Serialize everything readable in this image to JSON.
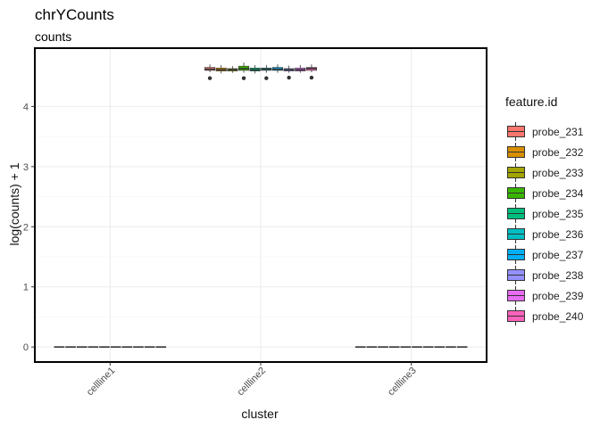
{
  "chart_data": {
    "type": "boxplot",
    "title": "chrYCounts",
    "subtitle": "counts",
    "xlabel": "cluster",
    "ylabel": "log(counts) + 1",
    "ylim": [
      -0.25,
      4.97
    ],
    "yticks": [
      0,
      1,
      2,
      3,
      4
    ],
    "categories": [
      "cellline1",
      "cellline2",
      "cellline3"
    ],
    "legend_title": "feature.id",
    "legend_position": "right",
    "grid": true,
    "series": [
      {
        "name": "probe_231",
        "color": "#F8766D",
        "stats": [
          [
            0,
            0,
            0,
            0,
            0
          ],
          [
            4.57,
            4.6,
            4.62,
            4.65,
            4.7
          ],
          [
            0,
            0,
            0,
            0,
            0
          ]
        ],
        "outliers": [
          [],
          [
            4.47
          ],
          []
        ]
      },
      {
        "name": "probe_232",
        "color": "#D89000",
        "stats": [
          [
            0,
            0,
            0,
            0,
            0
          ],
          [
            4.55,
            4.59,
            4.61,
            4.64,
            4.69
          ],
          [
            0,
            0,
            0,
            0,
            0
          ]
        ],
        "outliers": [
          [],
          [],
          []
        ]
      },
      {
        "name": "probe_233",
        "color": "#A3A500",
        "stats": [
          [
            0,
            0,
            0,
            0,
            0
          ],
          [
            4.56,
            4.59,
            4.61,
            4.63,
            4.67
          ],
          [
            0,
            0,
            0,
            0,
            0
          ]
        ],
        "outliers": [
          [],
          [],
          []
        ]
      },
      {
        "name": "probe_234",
        "color": "#39B600",
        "stats": [
          [
            0,
            0,
            0,
            0,
            0
          ],
          [
            4.56,
            4.6,
            4.63,
            4.67,
            4.73
          ],
          [
            0,
            0,
            0,
            0,
            0
          ]
        ],
        "outliers": [
          [],
          [
            4.47
          ],
          []
        ]
      },
      {
        "name": "probe_235",
        "color": "#00BF7D",
        "stats": [
          [
            0,
            0,
            0,
            0,
            0
          ],
          [
            4.55,
            4.59,
            4.61,
            4.64,
            4.69
          ],
          [
            0,
            0,
            0,
            0,
            0
          ]
        ],
        "outliers": [
          [],
          [],
          []
        ]
      },
      {
        "name": "probe_236",
        "color": "#00BFC4",
        "stats": [
          [
            0,
            0,
            0,
            0,
            0
          ],
          [
            4.56,
            4.6,
            4.62,
            4.64,
            4.69
          ],
          [
            0,
            0,
            0,
            0,
            0
          ]
        ],
        "outliers": [
          [],
          [
            4.47
          ],
          []
        ]
      },
      {
        "name": "probe_237",
        "color": "#00B0F6",
        "stats": [
          [
            0,
            0,
            0,
            0,
            0
          ],
          [
            4.56,
            4.6,
            4.62,
            4.65,
            4.7
          ],
          [
            0,
            0,
            0,
            0,
            0
          ]
        ],
        "outliers": [
          [],
          [],
          []
        ]
      },
      {
        "name": "probe_238",
        "color": "#9590FF",
        "stats": [
          [
            0,
            0,
            0,
            0,
            0
          ],
          [
            4.56,
            4.59,
            4.61,
            4.63,
            4.68
          ],
          [
            0,
            0,
            0,
            0,
            0
          ]
        ],
        "outliers": [
          [],
          [
            4.48
          ],
          []
        ]
      },
      {
        "name": "probe_239",
        "color": "#E76BF3",
        "stats": [
          [
            0,
            0,
            0,
            0,
            0
          ],
          [
            4.56,
            4.59,
            4.61,
            4.64,
            4.69
          ],
          [
            0,
            0,
            0,
            0,
            0
          ]
        ],
        "outliers": [
          [],
          [],
          []
        ]
      },
      {
        "name": "probe_240",
        "color": "#FF62BC",
        "stats": [
          [
            0,
            0,
            0,
            0,
            0
          ],
          [
            4.57,
            4.6,
            4.63,
            4.65,
            4.7
          ],
          [
            0,
            0,
            0,
            0,
            0
          ]
        ],
        "outliers": [
          [],
          [
            4.48
          ],
          []
        ]
      }
    ]
  }
}
